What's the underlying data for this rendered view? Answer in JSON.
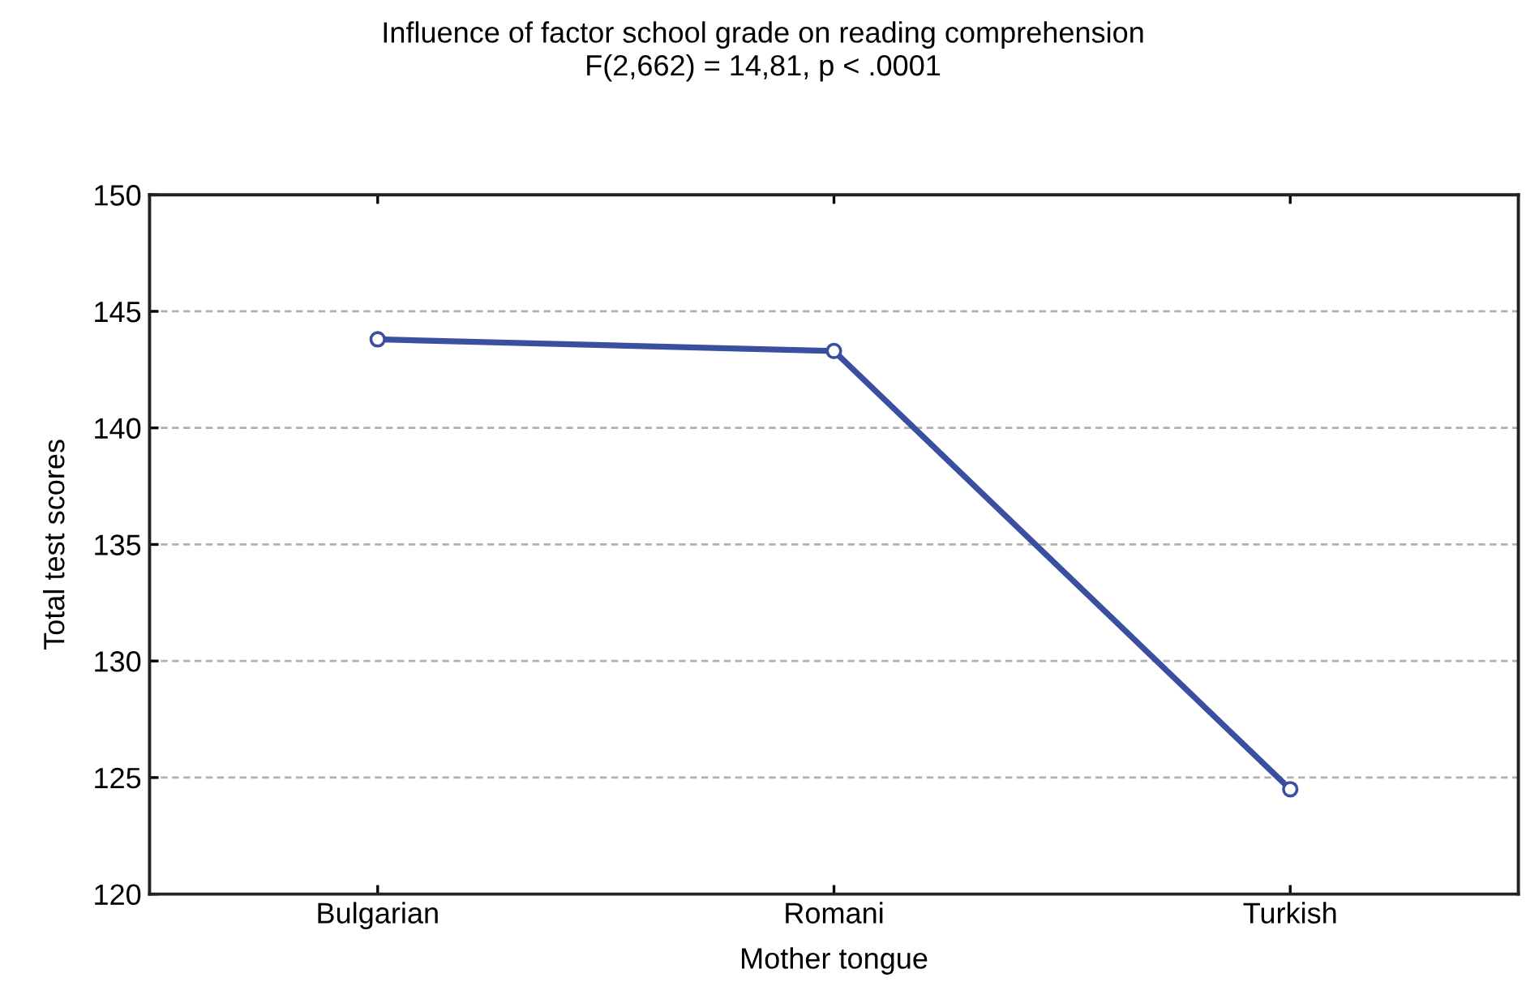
{
  "chart_data": {
    "type": "line",
    "title": "Influence of factor school grade on reading comprehension",
    "subtitle": "F(2,662) = 14,81, p < .0001",
    "xlabel": "Mother tongue",
    "ylabel": "Total test scores",
    "categories": [
      "Bulgarian",
      "Romani",
      "Turkish"
    ],
    "series": [
      {
        "color": "#3a4fa0",
        "values": [
          143.8,
          143.3,
          124.5
        ]
      }
    ],
    "ylim": [
      120,
      150
    ],
    "yticks": [
      120,
      125,
      130,
      135,
      140,
      145,
      150
    ],
    "grid": "y",
    "marker": "circle",
    "line_style": "solid",
    "legend": false
  }
}
